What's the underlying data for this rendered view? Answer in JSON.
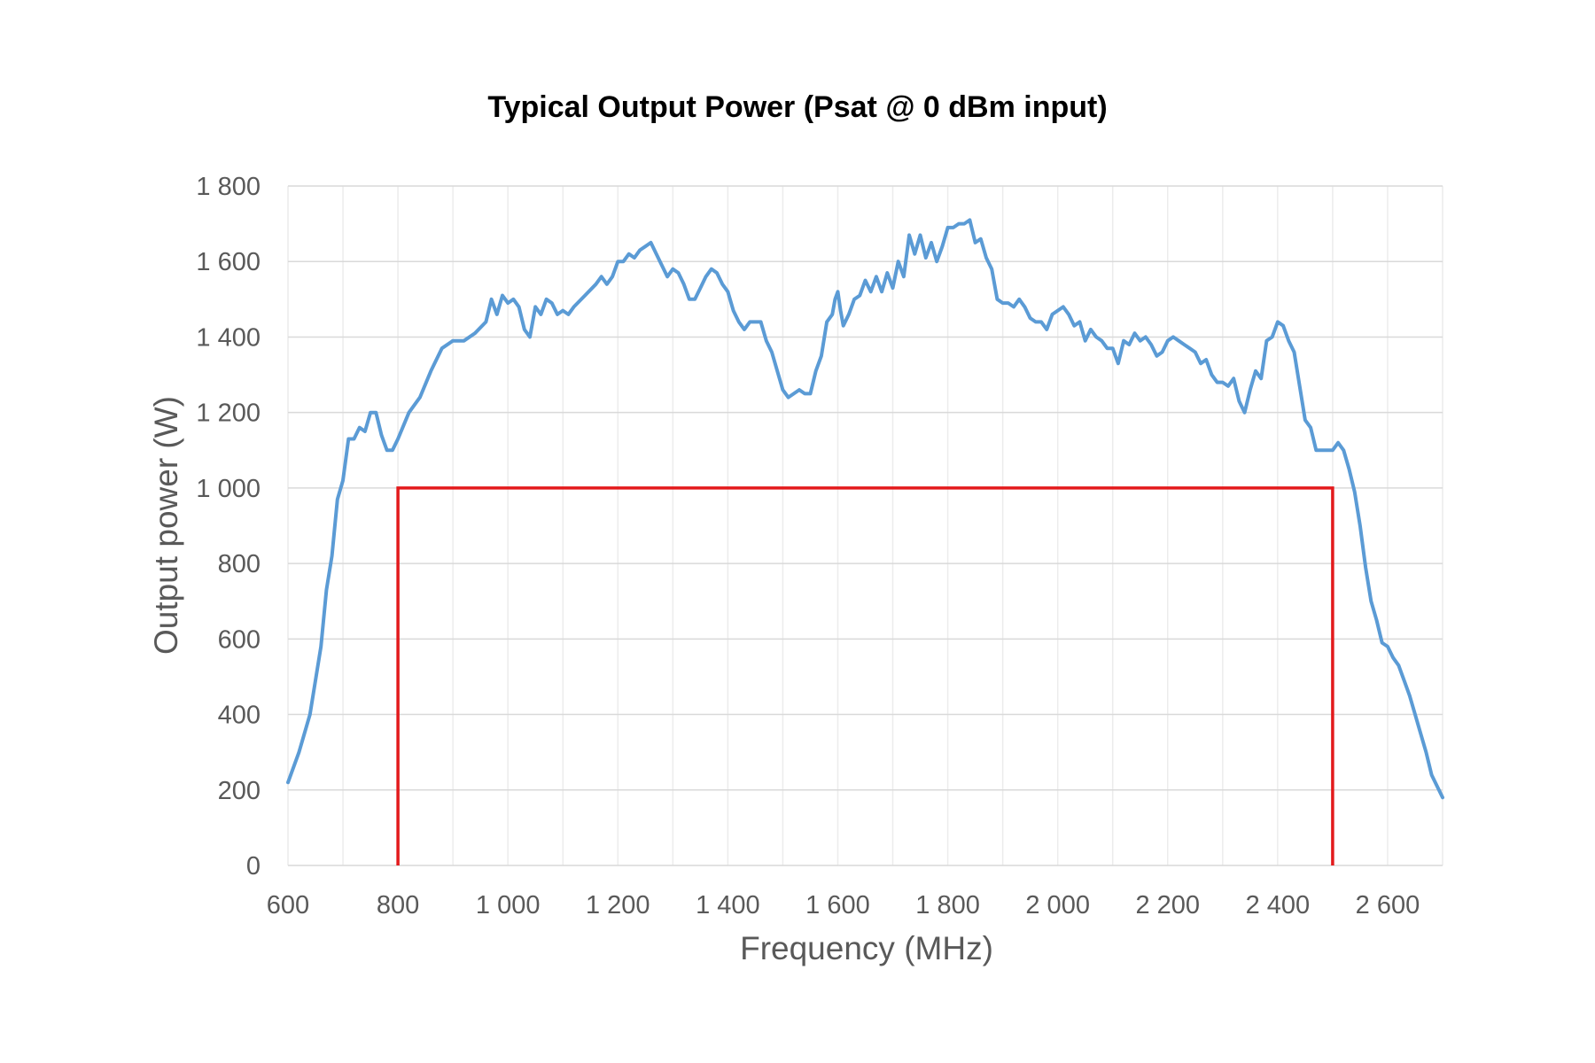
{
  "chart_data": {
    "type": "line",
    "title": "Typical Output Power (Psat @ 0 dBm input)",
    "xlabel": "Frequency (MHz)",
    "ylabel": "Output power (W)",
    "xlim": [
      600,
      2700
    ],
    "ylim": [
      0,
      1800
    ],
    "x_ticks": [
      600,
      800,
      1000,
      1200,
      1400,
      1600,
      1800,
      2000,
      2200,
      2400,
      2600
    ],
    "x_tick_labels": [
      "600",
      "800",
      "1 000",
      "1 200",
      "1 400",
      "1 600",
      "1 800",
      "2 000",
      "2 200",
      "2 400",
      "2 600"
    ],
    "y_ticks": [
      0,
      200,
      400,
      600,
      800,
      1000,
      1200,
      1400,
      1600,
      1800
    ],
    "y_tick_labels": [
      "0",
      "200",
      "400",
      "600",
      "800",
      "1 000",
      "1 200",
      "1 400",
      "1 600",
      "1 800"
    ],
    "grid": true,
    "series": [
      {
        "color": "#5b9bd5",
        "points": [
          [
            600,
            220
          ],
          [
            620,
            300
          ],
          [
            640,
            400
          ],
          [
            660,
            580
          ],
          [
            670,
            730
          ],
          [
            680,
            820
          ],
          [
            690,
            970
          ],
          [
            700,
            1020
          ],
          [
            710,
            1130
          ],
          [
            720,
            1130
          ],
          [
            730,
            1160
          ],
          [
            740,
            1150
          ],
          [
            750,
            1200
          ],
          [
            760,
            1200
          ],
          [
            770,
            1140
          ],
          [
            780,
            1100
          ],
          [
            790,
            1100
          ],
          [
            800,
            1130
          ],
          [
            820,
            1200
          ],
          [
            840,
            1240
          ],
          [
            860,
            1310
          ],
          [
            880,
            1370
          ],
          [
            900,
            1390
          ],
          [
            920,
            1390
          ],
          [
            940,
            1410
          ],
          [
            960,
            1440
          ],
          [
            970,
            1500
          ],
          [
            980,
            1460
          ],
          [
            990,
            1510
          ],
          [
            1000,
            1490
          ],
          [
            1010,
            1500
          ],
          [
            1020,
            1480
          ],
          [
            1030,
            1420
          ],
          [
            1040,
            1400
          ],
          [
            1050,
            1480
          ],
          [
            1060,
            1460
          ],
          [
            1070,
            1500
          ],
          [
            1080,
            1490
          ],
          [
            1090,
            1460
          ],
          [
            1100,
            1470
          ],
          [
            1110,
            1460
          ],
          [
            1120,
            1480
          ],
          [
            1140,
            1510
          ],
          [
            1160,
            1540
          ],
          [
            1170,
            1560
          ],
          [
            1180,
            1540
          ],
          [
            1190,
            1560
          ],
          [
            1200,
            1600
          ],
          [
            1210,
            1600
          ],
          [
            1220,
            1620
          ],
          [
            1230,
            1610
          ],
          [
            1240,
            1630
          ],
          [
            1250,
            1640
          ],
          [
            1260,
            1650
          ],
          [
            1270,
            1620
          ],
          [
            1280,
            1590
          ],
          [
            1290,
            1560
          ],
          [
            1300,
            1580
          ],
          [
            1310,
            1570
          ],
          [
            1320,
            1540
          ],
          [
            1330,
            1500
          ],
          [
            1340,
            1500
          ],
          [
            1350,
            1530
          ],
          [
            1360,
            1560
          ],
          [
            1370,
            1580
          ],
          [
            1380,
            1570
          ],
          [
            1390,
            1540
          ],
          [
            1400,
            1520
          ],
          [
            1410,
            1470
          ],
          [
            1420,
            1440
          ],
          [
            1430,
            1420
          ],
          [
            1440,
            1440
          ],
          [
            1460,
            1440
          ],
          [
            1470,
            1390
          ],
          [
            1480,
            1360
          ],
          [
            1490,
            1310
          ],
          [
            1500,
            1260
          ],
          [
            1510,
            1240
          ],
          [
            1520,
            1250
          ],
          [
            1530,
            1260
          ],
          [
            1540,
            1250
          ],
          [
            1550,
            1250
          ],
          [
            1560,
            1310
          ],
          [
            1570,
            1350
          ],
          [
            1580,
            1440
          ],
          [
            1590,
            1460
          ],
          [
            1595,
            1500
          ],
          [
            1600,
            1520
          ],
          [
            1605,
            1470
          ],
          [
            1610,
            1430
          ],
          [
            1620,
            1460
          ],
          [
            1630,
            1500
          ],
          [
            1640,
            1510
          ],
          [
            1650,
            1550
          ],
          [
            1660,
            1520
          ],
          [
            1670,
            1560
          ],
          [
            1680,
            1520
          ],
          [
            1690,
            1570
          ],
          [
            1700,
            1530
          ],
          [
            1710,
            1600
          ],
          [
            1720,
            1560
          ],
          [
            1730,
            1670
          ],
          [
            1740,
            1620
          ],
          [
            1750,
            1670
          ],
          [
            1760,
            1610
          ],
          [
            1770,
            1650
          ],
          [
            1780,
            1600
          ],
          [
            1790,
            1640
          ],
          [
            1800,
            1690
          ],
          [
            1810,
            1690
          ],
          [
            1820,
            1700
          ],
          [
            1830,
            1700
          ],
          [
            1840,
            1710
          ],
          [
            1850,
            1650
          ],
          [
            1860,
            1660
          ],
          [
            1870,
            1610
          ],
          [
            1880,
            1580
          ],
          [
            1890,
            1500
          ],
          [
            1900,
            1490
          ],
          [
            1910,
            1490
          ],
          [
            1920,
            1480
          ],
          [
            1930,
            1500
          ],
          [
            1940,
            1480
          ],
          [
            1950,
            1450
          ],
          [
            1960,
            1440
          ],
          [
            1970,
            1440
          ],
          [
            1980,
            1420
          ],
          [
            1990,
            1460
          ],
          [
            2000,
            1470
          ],
          [
            2010,
            1480
          ],
          [
            2020,
            1460
          ],
          [
            2030,
            1430
          ],
          [
            2040,
            1440
          ],
          [
            2050,
            1390
          ],
          [
            2060,
            1420
          ],
          [
            2070,
            1400
          ],
          [
            2080,
            1390
          ],
          [
            2090,
            1370
          ],
          [
            2100,
            1370
          ],
          [
            2110,
            1330
          ],
          [
            2120,
            1390
          ],
          [
            2130,
            1380
          ],
          [
            2140,
            1410
          ],
          [
            2150,
            1390
          ],
          [
            2160,
            1400
          ],
          [
            2170,
            1380
          ],
          [
            2180,
            1350
          ],
          [
            2190,
            1360
          ],
          [
            2200,
            1390
          ],
          [
            2210,
            1400
          ],
          [
            2220,
            1390
          ],
          [
            2230,
            1380
          ],
          [
            2240,
            1370
          ],
          [
            2250,
            1360
          ],
          [
            2260,
            1330
          ],
          [
            2270,
            1340
          ],
          [
            2280,
            1300
          ],
          [
            2290,
            1280
          ],
          [
            2300,
            1280
          ],
          [
            2310,
            1270
          ],
          [
            2320,
            1290
          ],
          [
            2330,
            1230
          ],
          [
            2340,
            1200
          ],
          [
            2350,
            1260
          ],
          [
            2360,
            1310
          ],
          [
            2370,
            1290
          ],
          [
            2380,
            1390
          ],
          [
            2390,
            1400
          ],
          [
            2400,
            1440
          ],
          [
            2410,
            1430
          ],
          [
            2420,
            1390
          ],
          [
            2430,
            1360
          ],
          [
            2440,
            1270
          ],
          [
            2450,
            1180
          ],
          [
            2460,
            1160
          ],
          [
            2470,
            1100
          ],
          [
            2480,
            1100
          ],
          [
            2490,
            1100
          ],
          [
            2500,
            1100
          ],
          [
            2510,
            1120
          ],
          [
            2520,
            1100
          ],
          [
            2530,
            1050
          ],
          [
            2540,
            990
          ],
          [
            2550,
            900
          ],
          [
            2560,
            790
          ],
          [
            2570,
            700
          ],
          [
            2580,
            650
          ],
          [
            2590,
            590
          ],
          [
            2600,
            580
          ],
          [
            2610,
            550
          ],
          [
            2620,
            530
          ],
          [
            2630,
            490
          ],
          [
            2640,
            450
          ],
          [
            2650,
            400
          ],
          [
            2660,
            350
          ],
          [
            2670,
            300
          ],
          [
            2680,
            240
          ],
          [
            2700,
            180
          ]
        ]
      }
    ],
    "annotations": [
      {
        "type": "rectangle",
        "color": "#e31a1c",
        "x": [
          800,
          2500
        ],
        "y": [
          0,
          1000
        ],
        "open_side": "bottom"
      }
    ]
  }
}
